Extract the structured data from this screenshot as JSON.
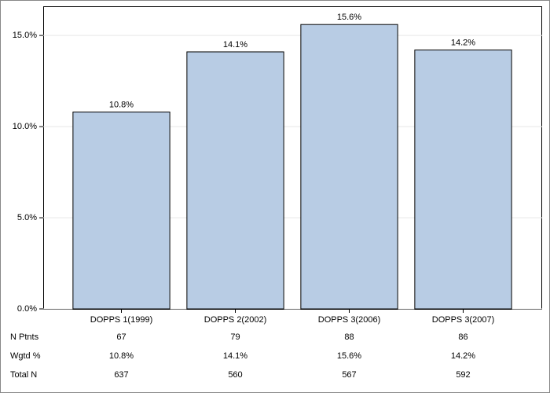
{
  "chart_data": {
    "type": "bar",
    "categories": [
      "DOPPS 1(1999)",
      "DOPPS 2(2002)",
      "DOPPS 3(2006)",
      "DOPPS 3(2007)"
    ],
    "values": [
      10.8,
      14.1,
      15.6,
      14.2
    ],
    "value_labels": [
      "10.8%",
      "14.1%",
      "15.6%",
      "14.2%"
    ],
    "color": "#b8cce4",
    "ylim": [
      0,
      16.6
    ],
    "yticks": [
      {
        "value": 0,
        "label": "0.0%"
      },
      {
        "value": 5,
        "label": "5.0%"
      },
      {
        "value": 10,
        "label": "10.0%"
      },
      {
        "value": 15,
        "label": "15.0%"
      }
    ],
    "grid": true,
    "table": {
      "rows": [
        {
          "label": "N Ptnts",
          "cells": [
            67,
            79,
            88,
            86
          ]
        },
        {
          "label": "Wgtd %",
          "cells": [
            "10.8%",
            "14.1%",
            "15.6%",
            "14.2%"
          ]
        },
        {
          "label": "Total N",
          "cells": [
            637,
            560,
            567,
            592
          ]
        }
      ]
    }
  }
}
